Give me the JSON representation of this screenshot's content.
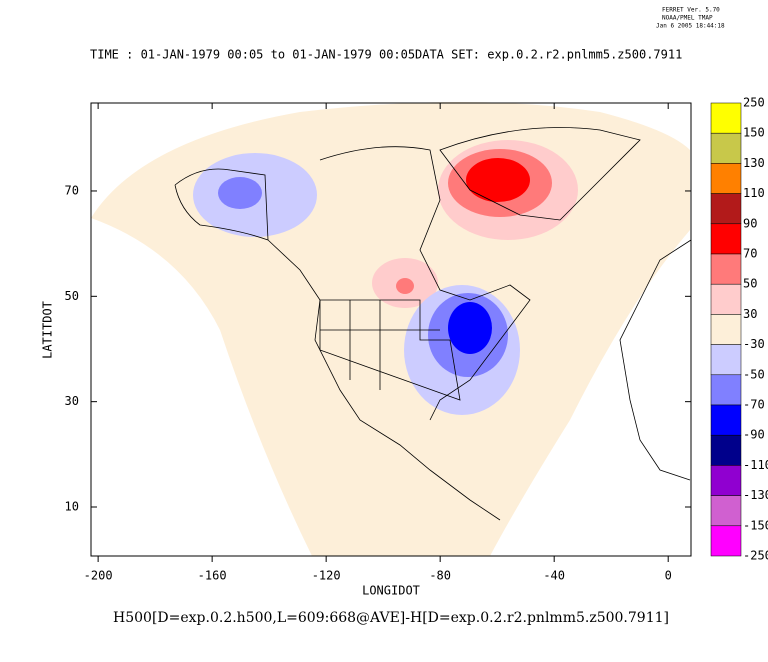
{
  "chart_data": {
    "type": "map",
    "stamp": [
      "FERRET Ver. 5.70",
      "NOAA/PMEL TMAP",
      "Jan  6 2005 18:44:18"
    ],
    "title": "TIME : 01-JAN-1979 00:05 to 01-JAN-1979 00:05",
    "dataset": "DATA SET: exp.0.2.r2.pnlmm5.z500.7911",
    "xlabel": "LONGIDOT",
    "ylabel": "LATITDOT",
    "footer": "H500[D=exp.0.2.h500,L=609:668@AVE]-H[D=exp.0.2.r2.pnlmm5.z500.7911]",
    "xlim": [
      -202.5,
      8
    ],
    "ylim": [
      0.7,
      86.7
    ],
    "xticks": [
      -200,
      -160,
      -120,
      -80,
      -40,
      0
    ],
    "yticks": [
      10,
      30,
      50,
      70
    ],
    "colorbar": {
      "levels": [
        250,
        150,
        130,
        110,
        90,
        70,
        50,
        30,
        -30,
        -50,
        -70,
        -90,
        -110,
        -130,
        -150,
        -250
      ],
      "colors": [
        "#ffff00",
        "#c8c84a",
        "#ff8000",
        "#b21a1a",
        "#ff0000",
        "#ff7a7a",
        "#ffcccc",
        "#fdefd9",
        "#ccccff",
        "#8080ff",
        "#0000ff",
        "#00008b",
        "#9000d0",
        "#d060d0",
        "#ff00ff"
      ]
    }
  }
}
